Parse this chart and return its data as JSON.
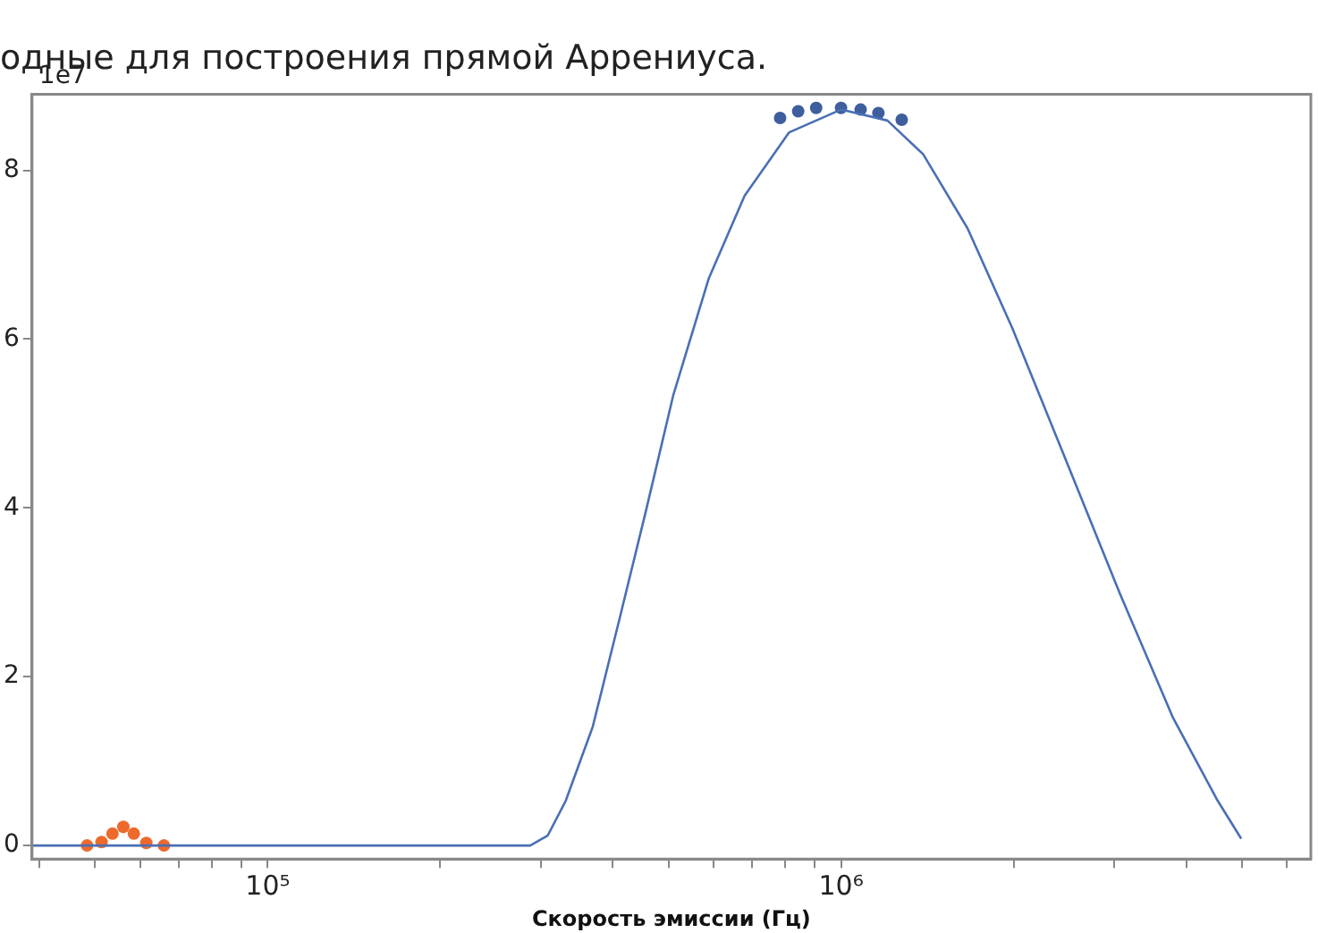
{
  "chart_data": {
    "type": "line",
    "title": "одные для построения прямой Аррениуса.",
    "xlabel": "Скорость эмиссии (Гц)",
    "log": "x",
    "grid": false,
    "legend": false,
    "marker": "none",
    "xlim": [
      38800,
      6600000
    ],
    "xticks": [
      {
        "value": 40000,
        "label": null
      },
      {
        "value": 50000,
        "label": null
      },
      {
        "value": 60000,
        "label": null
      },
      {
        "value": 70000,
        "label": null
      },
      {
        "value": 80000,
        "label": null
      },
      {
        "value": 90000,
        "label": null
      },
      {
        "value": 100000,
        "label": "10⁵"
      },
      {
        "value": 200000,
        "label": null
      },
      {
        "value": 300000,
        "label": null
      },
      {
        "value": 400000,
        "label": null
      },
      {
        "value": 500000,
        "label": null
      },
      {
        "value": 600000,
        "label": null
      },
      {
        "value": 700000,
        "label": null
      },
      {
        "value": 800000,
        "label": null
      },
      {
        "value": 900000,
        "label": null
      },
      {
        "value": 1000000,
        "label": "10⁶"
      },
      {
        "value": 2000000,
        "label": null
      },
      {
        "value": 3000000,
        "label": null
      },
      {
        "value": 4000000,
        "label": null
      },
      {
        "value": 5000000,
        "label": null
      },
      {
        "value": 6000000,
        "label": null
      }
    ],
    "ylim": [
      -0.16,
      8.9
    ],
    "yticks": [
      0,
      2,
      4,
      6,
      8
    ],
    "annotations": [
      "1e7"
    ],
    "series": [
      {
        "color": "#4a6fb5",
        "x": [
          38800,
          150000,
          287000,
          308000,
          331000,
          369000,
          411000,
          457000,
          510000,
          588000,
          679000,
          812000,
          1000000,
          1205000,
          1391000,
          1663000,
          1990000,
          2470000,
          3063000,
          3796000,
          4540000,
          4990000
        ],
        "values": [
          0,
          0,
          0,
          0.12,
          0.53,
          1.41,
          2.69,
          3.97,
          5.34,
          6.72,
          7.7,
          8.45,
          8.72,
          8.59,
          8.19,
          7.31,
          6.13,
          4.56,
          2.99,
          1.51,
          0.53,
          0.08
        ]
      },
      {
        "type": "scatter",
        "marker": "circle",
        "color": "#3e5e9e",
        "x": [
          783000,
          842000,
          905000,
          1000000,
          1082000,
          1162000,
          1276000
        ],
        "values": [
          8.62,
          8.7,
          8.74,
          8.74,
          8.72,
          8.68,
          8.6
        ]
      },
      {
        "type": "scatter",
        "marker": "circle",
        "color": "#ee6a2c",
        "x": [
          48400,
          51300,
          53600,
          56000,
          58400,
          61400,
          65900
        ],
        "values": [
          0,
          0.04,
          0.14,
          0.22,
          0.14,
          0.03,
          0
        ]
      }
    ]
  }
}
